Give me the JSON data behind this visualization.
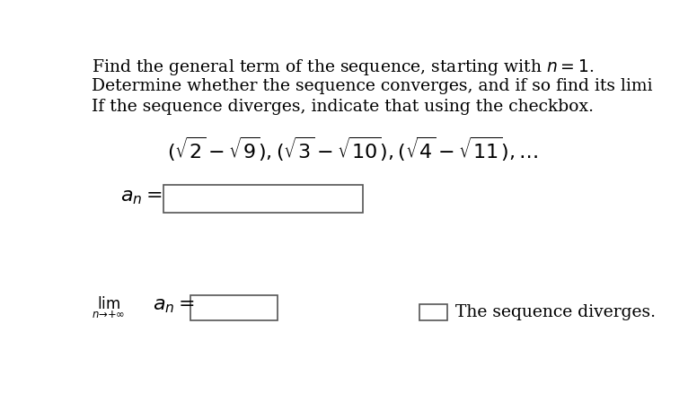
{
  "bg_color": "#ffffff",
  "text_color": "#000000",
  "line1": "Find the general term of the sequence, starting with $n = 1$.",
  "line2": "Determine whether the sequence converges, and if so find its limi",
  "line3": "If the sequence diverges, indicate that using the checkbox.",
  "sequence": "$(\\sqrt{2} - \\sqrt{9}), (\\sqrt{3} - \\sqrt{10}), (\\sqrt{4} - \\sqrt{11}), \\ldots$",
  "diverges_text": "The sequence diverges.",
  "font_size_text": 13.5,
  "font_size_seq": 16,
  "font_size_an": 16,
  "font_size_lim": 12
}
